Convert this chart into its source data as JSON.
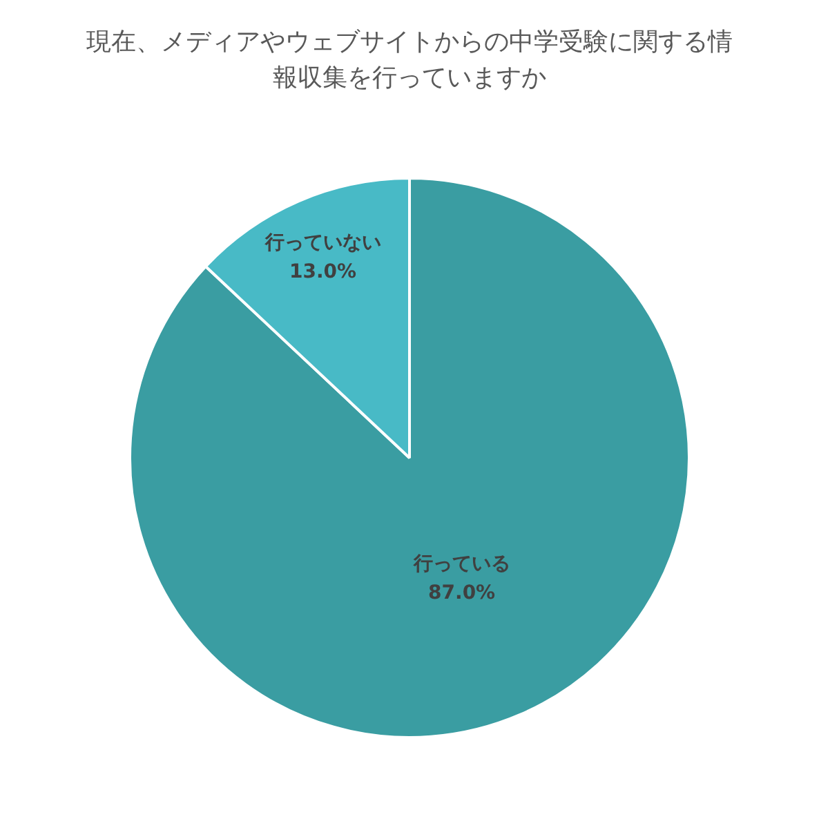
{
  "chart_data": {
    "type": "pie",
    "title": "現在、メディアやウェブサイトからの中学受験に関する情報収集を行っていますか",
    "categories": [
      "行っている",
      "行っていない"
    ],
    "values": [
      87.0,
      13.0
    ],
    "colors": [
      "#3a9da2",
      "#48bac6"
    ],
    "value_labels": [
      "87.0%",
      "13.0%"
    ],
    "legend": false
  }
}
